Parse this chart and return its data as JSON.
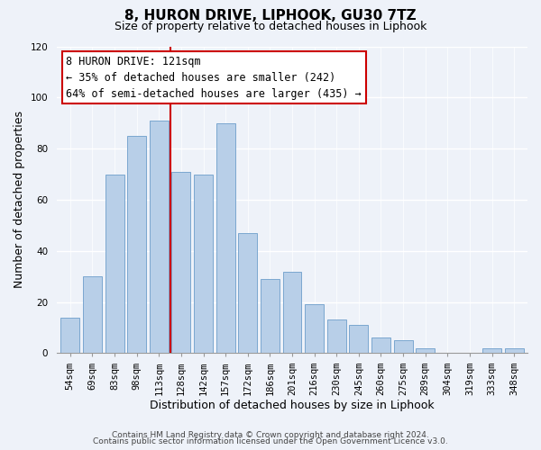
{
  "title": "8, HURON DRIVE, LIPHOOK, GU30 7TZ",
  "subtitle": "Size of property relative to detached houses in Liphook",
  "xlabel": "Distribution of detached houses by size in Liphook",
  "ylabel": "Number of detached properties",
  "bar_labels": [
    "54sqm",
    "69sqm",
    "83sqm",
    "98sqm",
    "113sqm",
    "128sqm",
    "142sqm",
    "157sqm",
    "172sqm",
    "186sqm",
    "201sqm",
    "216sqm",
    "230sqm",
    "245sqm",
    "260sqm",
    "275sqm",
    "289sqm",
    "304sqm",
    "319sqm",
    "333sqm",
    "348sqm"
  ],
  "bar_values": [
    14,
    30,
    70,
    85,
    91,
    71,
    70,
    90,
    47,
    29,
    32,
    19,
    13,
    11,
    6,
    5,
    2,
    0,
    0,
    2,
    2
  ],
  "bar_color": "#b8cfe8",
  "bar_edge_color": "#7ba7d0",
  "vline_index": 4.5,
  "vline_color": "#cc0000",
  "ylim": [
    0,
    120
  ],
  "yticks": [
    0,
    20,
    40,
    60,
    80,
    100,
    120
  ],
  "annotation_title": "8 HURON DRIVE: 121sqm",
  "annotation_line1": "← 35% of detached houses are smaller (242)",
  "annotation_line2": "64% of semi-detached houses are larger (435) →",
  "annotation_box_color": "#ffffff",
  "annotation_box_edge": "#cc0000",
  "footer1": "Contains HM Land Registry data © Crown copyright and database right 2024.",
  "footer2": "Contains public sector information licensed under the Open Government Licence v3.0.",
  "bg_color": "#eef2f9",
  "grid_color": "#ffffff",
  "title_fontsize": 11,
  "subtitle_fontsize": 9,
  "axis_label_fontsize": 9,
  "tick_fontsize": 7.5,
  "footer_fontsize": 6.5,
  "ann_fontsize": 8.5
}
